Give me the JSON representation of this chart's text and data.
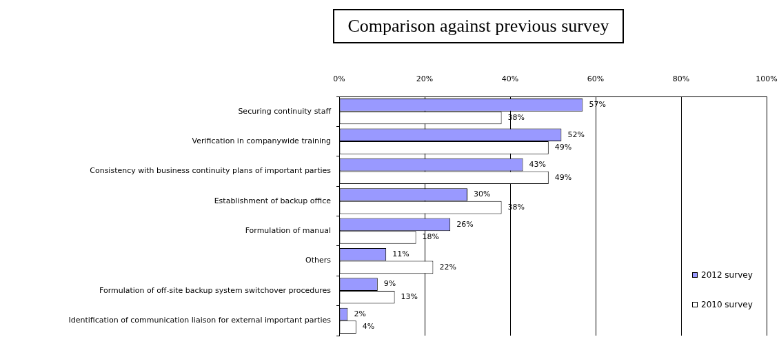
{
  "chart_data": {
    "type": "bar",
    "title": "Comparison against previous survey",
    "orientation": "horizontal",
    "categories": [
      "Securing continuity staff",
      "Verification in companywide training",
      "Consistency with business continuity plans of important parties",
      "Establishment of backup office",
      "Formulation of manual",
      "Others",
      "Formulation of off-site backup system switchover procedures",
      "Identification of communication liaison for external important parties"
    ],
    "series": [
      {
        "name": "2012 survey",
        "color": "#9999ff",
        "values": [
          57,
          52,
          43,
          30,
          26,
          11,
          9,
          2
        ],
        "value_labels": [
          "57%",
          "52%",
          "43%",
          "30%",
          "26%",
          "11%",
          "9%",
          "2%"
        ]
      },
      {
        "name": "2010 survey",
        "color": "#ffffff",
        "values": [
          38,
          49,
          49,
          38,
          18,
          22,
          13,
          4
        ],
        "value_labels": [
          "38%",
          "49%",
          "49%",
          "38%",
          "18%",
          "22%",
          "13%",
          "4%"
        ]
      }
    ],
    "xlim": [
      0,
      100
    ],
    "xticks": [
      {
        "value": 0,
        "label": "0%"
      },
      {
        "value": 20,
        "label": "20%"
      },
      {
        "value": 40,
        "label": "40%"
      },
      {
        "value": 60,
        "label": "60%"
      },
      {
        "value": 80,
        "label": "80%"
      },
      {
        "value": 100,
        "label": "100%"
      }
    ],
    "grid": "x",
    "legend": "bottom right"
  }
}
